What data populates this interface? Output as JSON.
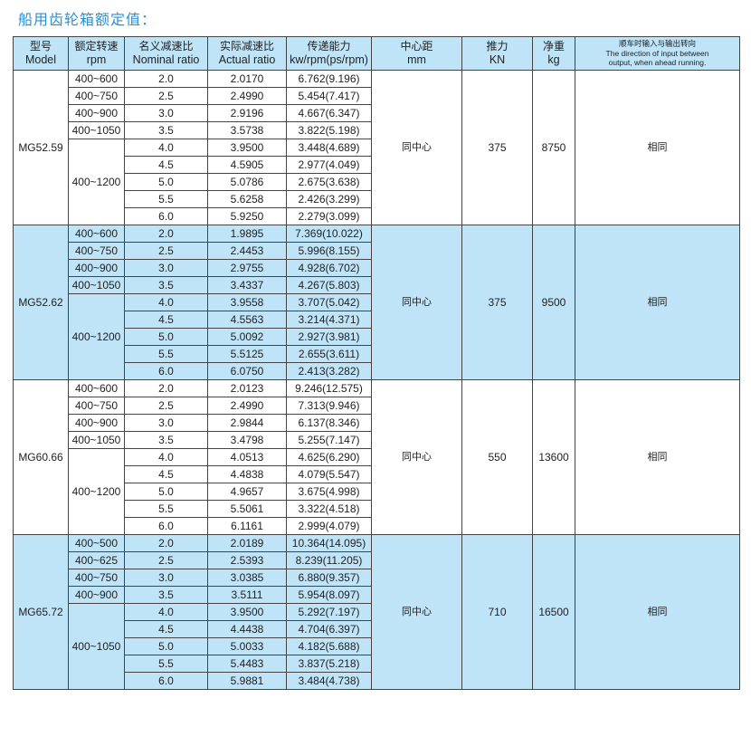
{
  "title": "船用齿轮箱额定值：",
  "header": {
    "model": {
      "cn": "型号",
      "en": "Model"
    },
    "rpm": {
      "cn": "额定转速",
      "en": "rpm"
    },
    "nominal": {
      "cn": "名义减速比",
      "en": "Nominal ratio"
    },
    "actual": {
      "cn": "实际减速比",
      "en": "Actual ratio"
    },
    "power": {
      "cn": "传递能力",
      "en": "kw/rpm(ps/rpm)"
    },
    "center": {
      "cn": "中心距",
      "en": "mm"
    },
    "thrust": {
      "cn": "推力",
      "en": "KN"
    },
    "weight": {
      "cn": "净重",
      "en": "kg"
    },
    "direction": {
      "cn": "顺车时输入与输出转向",
      "en": "The direction of input between output, when ahead running."
    }
  },
  "colors": {
    "title": "#2b8fd6",
    "highlight": "#bfe3f7"
  },
  "groups": [
    {
      "model": "MG52.59",
      "center": "同中心",
      "thrust": "375",
      "weight": "8750",
      "direction": "相同",
      "highlight": false,
      "rpm": [
        [
          "400~600",
          1
        ],
        [
          "400~750",
          1
        ],
        [
          "400~900",
          1
        ],
        [
          "400~1050",
          1
        ],
        [
          "400~1200",
          5
        ]
      ],
      "rows": [
        [
          "2.0",
          "2.0170",
          "6.762(9.196)"
        ],
        [
          "2.5",
          "2.4990",
          "5.454(7.417)"
        ],
        [
          "3.0",
          "2.9196",
          "4.667(6.347)"
        ],
        [
          "3.5",
          "3.5738",
          "3.822(5.198)"
        ],
        [
          "4.0",
          "3.9500",
          "3.448(4.689)"
        ],
        [
          "4.5",
          "4.5905",
          "2.977(4.049)"
        ],
        [
          "5.0",
          "5.0786",
          "2.675(3.638)"
        ],
        [
          "5.5",
          "5.6258",
          "2.426(3.299)"
        ],
        [
          "6.0",
          "5.9250",
          "2.279(3.099)"
        ]
      ]
    },
    {
      "model": "MG52.62",
      "center": "同中心",
      "thrust": "375",
      "weight": "9500",
      "direction": "相同",
      "highlight": true,
      "rpm": [
        [
          "400~600",
          1
        ],
        [
          "400~750",
          1
        ],
        [
          "400~900",
          1
        ],
        [
          "400~1050",
          1
        ],
        [
          "400~1200",
          5
        ]
      ],
      "rows": [
        [
          "2.0",
          "1.9895",
          "7.369(10.022)"
        ],
        [
          "2.5",
          "2.4453",
          "5.996(8.155)"
        ],
        [
          "3.0",
          "2.9755",
          "4.928(6.702)"
        ],
        [
          "3.5",
          "3.4337",
          "4.267(5.803)"
        ],
        [
          "4.0",
          "3.9558",
          "3.707(5.042)"
        ],
        [
          "4.5",
          "4.5563",
          "3.214(4.371)"
        ],
        [
          "5.0",
          "5.0092",
          "2.927(3.981)"
        ],
        [
          "5.5",
          "5.5125",
          "2.655(3.611)"
        ],
        [
          "6.0",
          "6.0750",
          "2.413(3.282)"
        ]
      ]
    },
    {
      "model": "MG60.66",
      "center": "同中心",
      "thrust": "550",
      "weight": "13600",
      "direction": "相同",
      "highlight": false,
      "rpm": [
        [
          "400~600",
          1
        ],
        [
          "400~750",
          1
        ],
        [
          "400~900",
          1
        ],
        [
          "400~1050",
          1
        ],
        [
          "400~1200",
          5
        ]
      ],
      "rows": [
        [
          "2.0",
          "2.0123",
          "9.246(12.575)"
        ],
        [
          "2.5",
          "2.4990",
          "7.313(9.946)"
        ],
        [
          "3.0",
          "2.9844",
          "6.137(8.346)"
        ],
        [
          "3.5",
          "3.4798",
          "5.255(7.147)"
        ],
        [
          "4.0",
          "4.0513",
          "4.625(6.290)"
        ],
        [
          "4.5",
          "4.4838",
          "4.079(5.547)"
        ],
        [
          "5.0",
          "4.9657",
          "3.675(4.998)"
        ],
        [
          "5.5",
          "5.5061",
          "3.322(4.518)"
        ],
        [
          "6.0",
          "6.1161",
          "2.999(4.079)"
        ]
      ]
    },
    {
      "model": "MG65.72",
      "center": "同中心",
      "thrust": "710",
      "weight": "16500",
      "direction": "相同",
      "highlight": true,
      "rpm": [
        [
          "400~500",
          1
        ],
        [
          "400~625",
          1
        ],
        [
          "400~750",
          1
        ],
        [
          "400~900",
          1
        ],
        [
          "400~1050",
          5
        ]
      ],
      "rows": [
        [
          "2.0",
          "2.0189",
          "10.364(14.095)"
        ],
        [
          "2.5",
          "2.5393",
          "8.239(11.205)"
        ],
        [
          "3.0",
          "3.0385",
          "6.880(9.357)"
        ],
        [
          "3.5",
          "3.5111",
          "5.954(8.097)"
        ],
        [
          "4.0",
          "3.9500",
          "5.292(7.197)"
        ],
        [
          "4.5",
          "4.4438",
          "4.704(6.397)"
        ],
        [
          "5.0",
          "5.0033",
          "4.182(5.688)"
        ],
        [
          "5.5",
          "5.4483",
          "3.837(5.218)"
        ],
        [
          "6.0",
          "5.9881",
          "3.484(4.738)"
        ]
      ]
    }
  ]
}
